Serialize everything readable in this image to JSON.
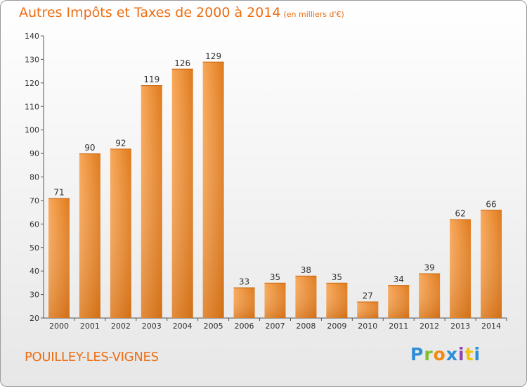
{
  "title": "Autres Impôts et Taxes de 2000 à 2014",
  "unit": "(en milliers d'€)",
  "place": "POUILLEY-LES-VIGNES",
  "logo": "Proxiti",
  "colors": {
    "bar_light": "#f8a85a",
    "bar_dark": "#df7a1c",
    "accent": "#ee6d12"
  },
  "chart_data": {
    "type": "bar",
    "title": "Autres Impôts et Taxes de 2000 à 2014",
    "subtitle": "(en milliers d'€)",
    "categories": [
      "2000",
      "2001",
      "2002",
      "2003",
      "2004",
      "2005",
      "2006",
      "2007",
      "2008",
      "2009",
      "2010",
      "2011",
      "2012",
      "2013",
      "2014"
    ],
    "values": [
      71,
      90,
      92,
      119,
      126,
      129,
      33,
      35,
      38,
      35,
      27,
      34,
      39,
      62,
      66
    ],
    "ylim": [
      20,
      140
    ],
    "yticks": [
      20,
      30,
      40,
      50,
      60,
      70,
      80,
      90,
      100,
      110,
      120,
      130,
      140
    ],
    "grid": false,
    "legend": "none"
  }
}
